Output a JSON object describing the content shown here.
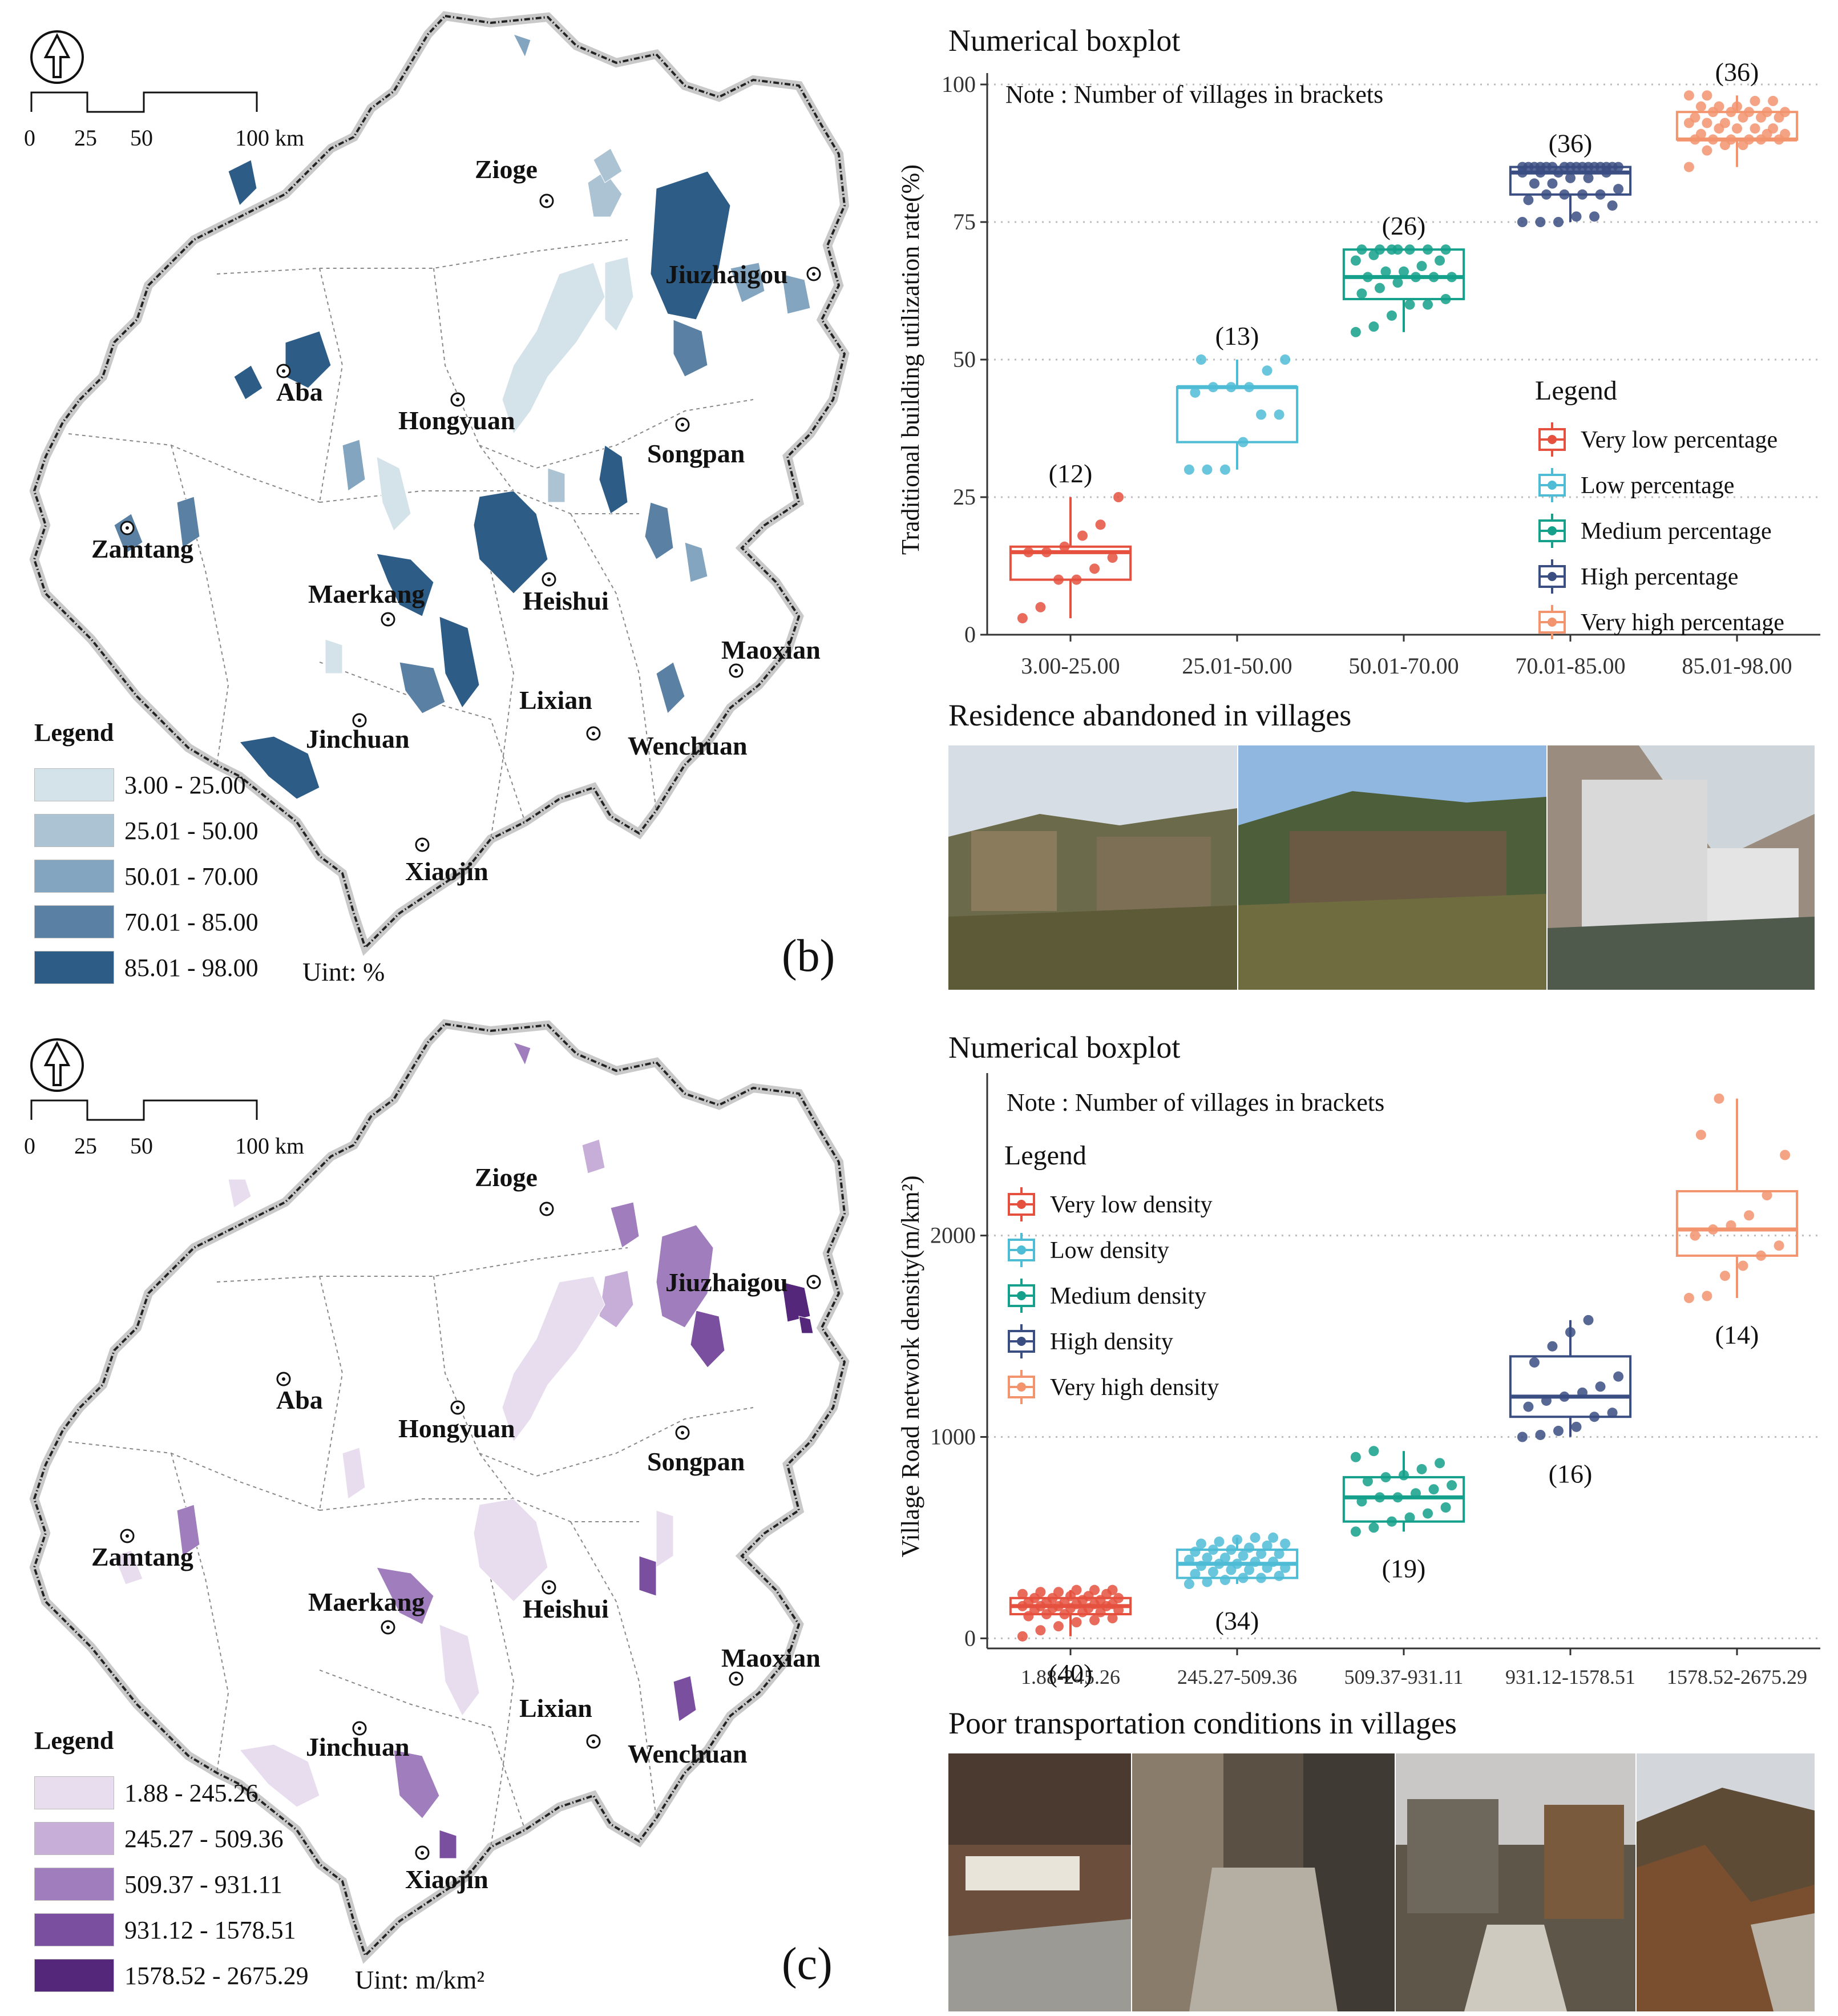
{
  "top": {
    "map": {
      "scale": [
        "0",
        "25",
        "50",
        "100 km"
      ],
      "cities": [
        "Zioge",
        "Jiuzhaigou",
        "Aba",
        "Hongyuan",
        "Songpan",
        "Zamtang",
        "Maerkang",
        "Heishui",
        "Maoxian",
        "Lixian",
        "Wenchuan",
        "Jinchuan",
        "Xiaojin"
      ],
      "legend_title": "Legend",
      "legend": [
        {
          "label": "3.00 - 25.00",
          "color": "#d4e2e9"
        },
        {
          "label": "25.01 - 50.00",
          "color": "#abc3d2"
        },
        {
          "label": "50.01 - 70.00",
          "color": "#84a5bf"
        },
        {
          "label": "70.01 - 85.00",
          "color": "#5a80a3"
        },
        {
          "label": "85.01 - 98.00",
          "color": "#2d5c86"
        }
      ],
      "unit": "Uint: %",
      "panel": "(b)"
    },
    "chart_title": "Numerical boxplot",
    "note": "Note : Number of villages in brackets",
    "photos_title": "Residence abandoned in villages"
  },
  "bottom": {
    "map": {
      "scale": [
        "0",
        "25",
        "50",
        "100 km"
      ],
      "cities": [
        "Zioge",
        "Jiuzhaigou",
        "Aba",
        "Hongyuan",
        "Songpan",
        "Zamtang",
        "Maerkang",
        "Heishui",
        "Maoxian",
        "Lixian",
        "Wenchuan",
        "Jinchuan",
        "Xiaojin"
      ],
      "legend_title": "Legend",
      "legend": [
        {
          "label": "1.88 - 245.26",
          "color": "#e8ddef"
        },
        {
          "label": "245.27 - 509.36",
          "color": "#c6aed8"
        },
        {
          "label": "509.37 - 931.11",
          "color": "#a07dbd"
        },
        {
          "label": "931.12 - 1578.51",
          "color": "#7b4f9f"
        },
        {
          "label": "1578.52 - 2675.29",
          "color": "#55277a"
        }
      ],
      "unit": "Uint: m/km²",
      "panel": "(c)"
    },
    "chart_title": "Numerical boxplot",
    "note": "Note : Number of villages in brackets",
    "photos_title": "Poor transportation conditions in villages"
  },
  "chart_data": [
    {
      "type": "box",
      "ylabel": "Traditional building utilization rate(%)",
      "ylim": [
        0,
        100
      ],
      "yticks": [
        0,
        25,
        50,
        75,
        100
      ],
      "grid": "horizontal dotted",
      "legend_title": "Legend",
      "legend_position": "right",
      "categories": [
        "3.00-25.00",
        "25.01-50.00",
        "50.01-70.00",
        "70.01-85.00",
        "85.01-98.00"
      ],
      "series": [
        {
          "name": "Very low percentage",
          "color": "#e5513e",
          "count_label": "(12)",
          "min": 3,
          "q1": 10,
          "median": 15,
          "q3": 16,
          "max": 25,
          "points": [
            3,
            5,
            10,
            10,
            12,
            14,
            15,
            15,
            16,
            18,
            20,
            25
          ]
        },
        {
          "name": "Low percentage",
          "color": "#4fbcd6",
          "count_label": "(13)",
          "min": 30,
          "q1": 35,
          "median": 45,
          "q3": 45,
          "max": 50,
          "points": [
            30,
            30,
            30,
            35,
            40,
            40,
            44,
            45,
            45,
            45,
            48,
            50,
            50
          ]
        },
        {
          "name": "Medium percentage",
          "color": "#14a08a",
          "count_label": "(26)",
          "min": 55,
          "q1": 61,
          "median": 65,
          "q3": 70,
          "max": 70,
          "points": [
            55,
            56,
            58,
            60,
            60,
            61,
            62,
            63,
            64,
            65,
            65,
            65,
            65,
            66,
            66,
            67,
            68,
            68,
            69,
            70,
            70,
            70,
            70,
            70,
            70,
            70
          ]
        },
        {
          "name": "High percentage",
          "color": "#3b4e82",
          "count_label": "(36)",
          "min": 75,
          "q1": 80,
          "median": 84,
          "q3": 85,
          "max": 85,
          "points": [
            75,
            75,
            75,
            76,
            76,
            78,
            79,
            80,
            80,
            80,
            80,
            81,
            82,
            82,
            83,
            83,
            84,
            84,
            84,
            84,
            85,
            85,
            85,
            85,
            85,
            85,
            85,
            85,
            85,
            85,
            85,
            85,
            85,
            85,
            85,
            85
          ]
        },
        {
          "name": "Very high percentage",
          "color": "#f2946e",
          "count_label": "(36)",
          "min": 85,
          "q1": 90,
          "median": 90,
          "q3": 95,
          "max": 98,
          "points": [
            85,
            88,
            89,
            89,
            90,
            90,
            90,
            90,
            90,
            90,
            91,
            91,
            91,
            92,
            92,
            92,
            92,
            93,
            93,
            93,
            94,
            94,
            94,
            94,
            95,
            95,
            95,
            95,
            95,
            96,
            96,
            96,
            97,
            97,
            98,
            98
          ]
        }
      ]
    },
    {
      "type": "box",
      "ylabel": "Village Road network density(m/km²)",
      "ylim": [
        -50,
        2750
      ],
      "yticks": [
        0,
        1000,
        2000
      ],
      "grid": "horizontal dotted",
      "legend_title": "Legend",
      "legend_position": "top-left",
      "categories": [
        "1.88-245.26",
        "245.27-509.36",
        "509.37-931.11",
        "931.12-1578.51",
        "1578.52-2675.29"
      ],
      "series": [
        {
          "name": "Very low density",
          "color": "#e5513e",
          "count_label": "(40)",
          "min": 10,
          "q1": 120,
          "median": 160,
          "q3": 200,
          "max": 240,
          "points": [
            10,
            40,
            60,
            80,
            90,
            100,
            110,
            120,
            120,
            130,
            130,
            140,
            140,
            150,
            150,
            150,
            160,
            160,
            160,
            160,
            170,
            170,
            170,
            180,
            180,
            180,
            190,
            190,
            200,
            200,
            200,
            210,
            210,
            220,
            220,
            230,
            230,
            240,
            240,
            240
          ]
        },
        {
          "name": "Low density",
          "color": "#4fbcd6",
          "count_label": "(34)",
          "min": 270,
          "q1": 300,
          "median": 370,
          "q3": 440,
          "max": 500,
          "points": [
            270,
            280,
            290,
            300,
            300,
            310,
            320,
            330,
            340,
            340,
            350,
            350,
            360,
            370,
            370,
            380,
            380,
            390,
            400,
            400,
            410,
            420,
            420,
            430,
            440,
            440,
            450,
            460,
            470,
            470,
            480,
            490,
            500,
            500
          ]
        },
        {
          "name": "Medium density",
          "color": "#14a08a",
          "count_label": "(19)",
          "min": 530,
          "q1": 580,
          "median": 700,
          "q3": 800,
          "max": 930,
          "points": [
            530,
            550,
            580,
            600,
            620,
            650,
            680,
            700,
            700,
            720,
            740,
            760,
            780,
            800,
            810,
            840,
            870,
            900,
            930
          ]
        },
        {
          "name": "High density",
          "color": "#3b4e82",
          "count_label": "(16)",
          "min": 1000,
          "q1": 1100,
          "median": 1200,
          "q3": 1400,
          "max": 1580,
          "points": [
            1000,
            1010,
            1030,
            1050,
            1100,
            1120,
            1150,
            1180,
            1200,
            1220,
            1250,
            1300,
            1370,
            1450,
            1520,
            1580
          ]
        },
        {
          "name": "Very high density",
          "color": "#f2946e",
          "count_label": "(14)",
          "min": 1690,
          "q1": 1900,
          "median": 2030,
          "q3": 2220,
          "max": 2680,
          "points": [
            1690,
            1700,
            1800,
            1850,
            1900,
            1950,
            2000,
            2030,
            2050,
            2100,
            2200,
            2400,
            2500,
            2680
          ]
        }
      ]
    }
  ]
}
